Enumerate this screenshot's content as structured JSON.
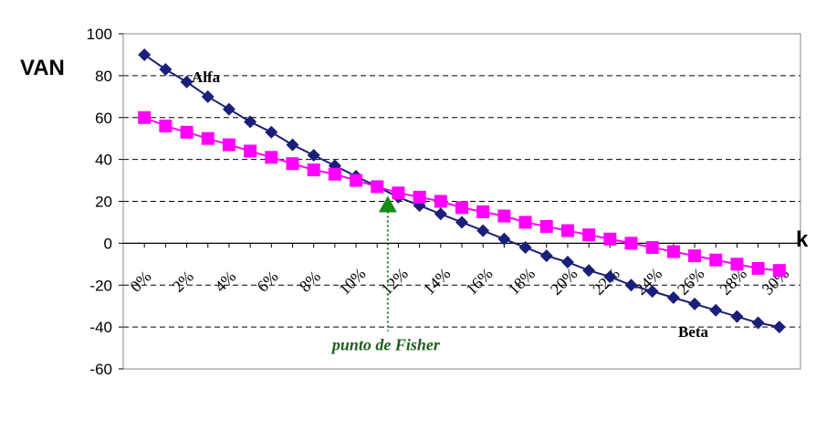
{
  "chart_data": {
    "type": "line",
    "ylabel": "VAN",
    "xlabel": "k",
    "ylim": [
      -60,
      100
    ],
    "yticks": [
      100,
      80,
      60,
      40,
      20,
      0,
      -20,
      -40,
      -60
    ],
    "x_tick_labels": [
      "0%",
      "2%",
      "4%",
      "6%",
      "8%",
      "10%",
      "12%",
      "14%",
      "16%",
      "18%",
      "20%",
      "22%",
      "24%",
      "26%",
      "28%",
      "30%"
    ],
    "x_tick_values": [
      0,
      2,
      4,
      6,
      8,
      10,
      12,
      14,
      16,
      18,
      20,
      22,
      24,
      26,
      28,
      30
    ],
    "grid": "horizontal dashed",
    "series": [
      {
        "name": "Alfa",
        "color": "#1a1f7a",
        "marker": "diamond",
        "x": [
          0,
          1,
          2,
          3,
          4,
          5,
          6,
          7,
          8,
          9,
          10,
          11,
          12,
          13,
          14,
          15,
          16,
          17,
          18,
          19,
          20,
          21,
          22,
          23,
          24,
          25,
          26,
          27,
          28,
          29,
          30
        ],
        "y": [
          90,
          83,
          77,
          70,
          64,
          58,
          53,
          47,
          42,
          37,
          32,
          27,
          22,
          18,
          14,
          10,
          6,
          2,
          -2,
          -6,
          -9,
          -13,
          -16,
          -20,
          -23,
          -26,
          -29,
          -32,
          -35,
          -38,
          -40
        ]
      },
      {
        "name": "Beta",
        "color": "#ff00ff",
        "marker": "square",
        "x": [
          0,
          1,
          2,
          3,
          4,
          5,
          6,
          7,
          8,
          9,
          10,
          11,
          12,
          13,
          14,
          15,
          16,
          17,
          18,
          19,
          20,
          21,
          22,
          23,
          24,
          25,
          26,
          27,
          28,
          29,
          30
        ],
        "y": [
          60,
          56,
          53,
          50,
          47,
          44,
          41,
          38,
          35,
          33,
          30,
          27,
          24,
          22,
          20,
          17,
          15,
          13,
          10,
          8,
          6,
          4,
          2,
          0,
          -2,
          -4,
          -6,
          -8,
          -10,
          -12,
          -13
        ]
      }
    ],
    "annotation": {
      "text": "punto de Fisher",
      "x": 11.5,
      "y": 20,
      "color": "#1e7a1e"
    }
  }
}
